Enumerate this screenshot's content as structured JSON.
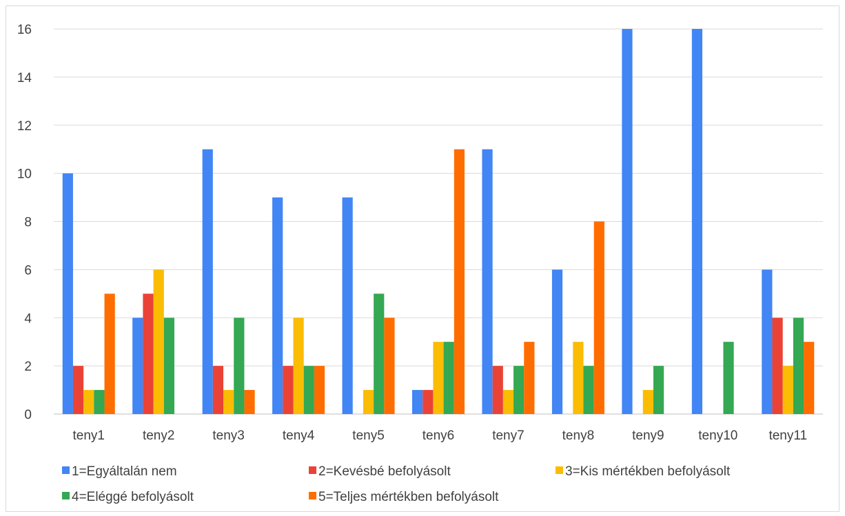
{
  "chart_data": {
    "type": "bar",
    "title": "",
    "xlabel": "",
    "ylabel": "",
    "ylim": [
      0,
      16
    ],
    "yticks": [
      0,
      2,
      4,
      6,
      8,
      10,
      12,
      14,
      16
    ],
    "grid": true,
    "legend_position": "bottom",
    "categories": [
      "teny1",
      "teny2",
      "teny3",
      "teny4",
      "teny5",
      "teny6",
      "teny7",
      "teny8",
      "teny9",
      "teny10",
      "teny11"
    ],
    "series": [
      {
        "name": "1=Egyáltalán nem",
        "color": "#4285F4",
        "values": [
          10,
          4,
          11,
          9,
          9,
          1,
          11,
          6,
          16,
          16,
          6
        ]
      },
      {
        "name": "2=Kevésbé befolyásolt",
        "color": "#EA4335",
        "values": [
          2,
          5,
          2,
          2,
          0,
          1,
          2,
          0,
          0,
          0,
          4
        ]
      },
      {
        "name": "3=Kis mértékben befolyásolt",
        "color": "#FBBC04",
        "values": [
          1,
          6,
          1,
          4,
          1,
          3,
          1,
          3,
          1,
          0,
          2
        ]
      },
      {
        "name": "4=Eléggé befolyásolt",
        "color": "#34A853",
        "values": [
          1,
          4,
          4,
          2,
          5,
          3,
          2,
          2,
          2,
          3,
          4
        ]
      },
      {
        "name": "5=Teljes mértékben befolyásolt",
        "color": "#FF6D01",
        "values": [
          5,
          0,
          1,
          2,
          4,
          11,
          3,
          8,
          0,
          0,
          3
        ]
      }
    ]
  }
}
